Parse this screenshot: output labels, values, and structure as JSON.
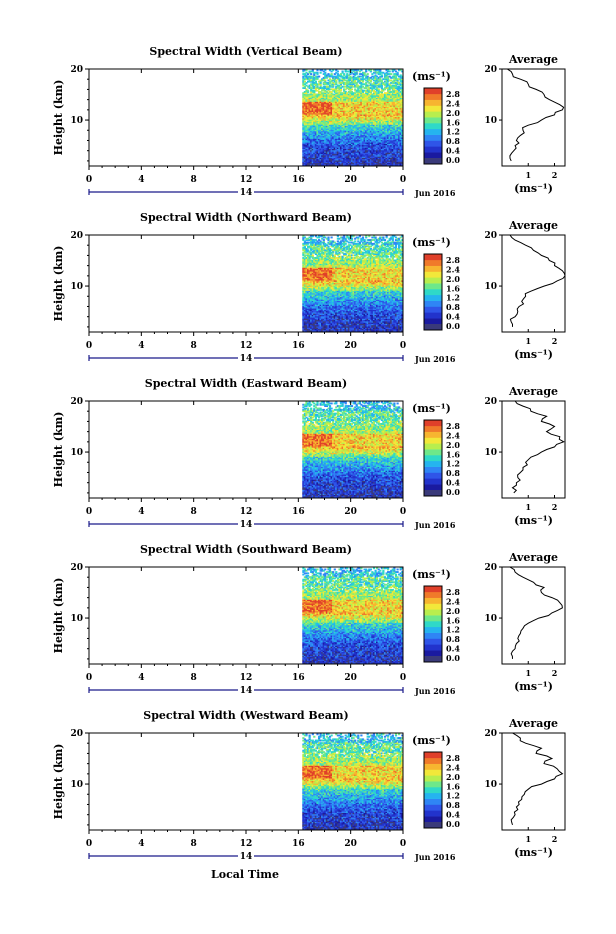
{
  "figure": {
    "xlabel": "Local Time",
    "date_label": "Jun 2016",
    "day_label": "14",
    "ylabel": "Height (km)",
    "unit_label": "(ms⁻¹)",
    "avg_title": "Average"
  },
  "colorbar": {
    "ticks": [
      "0.0",
      "0.4",
      "0.8",
      "1.2",
      "1.6",
      "2.0",
      "2.4",
      "2.8"
    ],
    "colors": [
      "#1a1aa0",
      "#2233cc",
      "#2f55e8",
      "#2f85f5",
      "#25b4ef",
      "#2fd9c8",
      "#6ee88a",
      "#b8ee4e",
      "#f2e83a",
      "#f7b530",
      "#f07a2a",
      "#e0402a"
    ],
    "bottom_color": "#3a3a7a"
  },
  "chart_data": [
    {
      "type": "heatmap",
      "title": "Spectral Width (Vertical Beam)",
      "x_ticks": [
        "0",
        "4",
        "8",
        "12",
        "16",
        "20",
        "0"
      ],
      "y_ticks": [
        "20",
        "10"
      ],
      "xlim": [
        0,
        24
      ],
      "ylim": [
        1,
        20
      ],
      "data_start_hour": 16.3,
      "average": {
        "x_ticks": [
          "1",
          "2"
        ],
        "y_ticks": [
          "20",
          "10"
        ],
        "xlim": [
          0,
          2.4
        ],
        "heights": [
          2,
          3,
          4,
          5,
          6,
          7,
          8,
          9,
          10,
          11,
          12,
          13,
          14,
          15,
          16,
          17,
          18,
          19,
          20
        ],
        "values": [
          0.35,
          0.3,
          0.45,
          0.5,
          0.55,
          0.7,
          0.8,
          1.0,
          1.5,
          2.0,
          2.3,
          2.2,
          1.8,
          1.6,
          1.3,
          1.0,
          0.7,
          0.4,
          0.2
        ]
      }
    },
    {
      "type": "heatmap",
      "title": "Spectral Width (Northward Beam)",
      "x_ticks": [
        "0",
        "4",
        "8",
        "12",
        "16",
        "20",
        "0"
      ],
      "y_ticks": [
        "20",
        "10"
      ],
      "xlim": [
        0,
        24
      ],
      "ylim": [
        1,
        20
      ],
      "data_start_hour": 16.3,
      "average": {
        "x_ticks": [
          "1",
          "2"
        ],
        "y_ticks": [
          "20",
          "10"
        ],
        "xlim": [
          0,
          2.4
        ],
        "heights": [
          2,
          3,
          4,
          5,
          6,
          7,
          8,
          9,
          10,
          11,
          12,
          13,
          14,
          15,
          16,
          17,
          18,
          19,
          20
        ],
        "values": [
          0.4,
          0.35,
          0.5,
          0.6,
          0.65,
          0.75,
          0.9,
          1.1,
          1.6,
          2.1,
          2.4,
          2.3,
          2.0,
          1.8,
          1.5,
          1.2,
          0.9,
          0.5,
          0.3
        ]
      }
    },
    {
      "type": "heatmap",
      "title": "Spectral Width (Eastward Beam)",
      "x_ticks": [
        "0",
        "4",
        "8",
        "12",
        "16",
        "20",
        "0"
      ],
      "y_ticks": [
        "20",
        "10"
      ],
      "xlim": [
        0,
        24
      ],
      "ylim": [
        1,
        20
      ],
      "data_start_hour": 16.3,
      "average": {
        "x_ticks": [
          "1",
          "2"
        ],
        "y_ticks": [
          "20",
          "10"
        ],
        "xlim": [
          0,
          2.4
        ],
        "heights": [
          2,
          3,
          4,
          5,
          6,
          7,
          8,
          9,
          10,
          11,
          12,
          13,
          14,
          15,
          16,
          17,
          18,
          19,
          20
        ],
        "values": [
          0.45,
          0.4,
          0.55,
          0.6,
          0.7,
          0.8,
          0.9,
          1.1,
          1.5,
          2.0,
          2.35,
          2.2,
          1.7,
          2.0,
          1.5,
          1.7,
          1.1,
          0.8,
          0.5
        ]
      }
    },
    {
      "type": "heatmap",
      "title": "Spectral Width (Southward Beam)",
      "x_ticks": [
        "0",
        "4",
        "8",
        "12",
        "16",
        "20",
        "0"
      ],
      "y_ticks": [
        "20",
        "10"
      ],
      "xlim": [
        0,
        24
      ],
      "ylim": [
        1,
        20
      ],
      "data_start_hour": 16.3,
      "average": {
        "x_ticks": [
          "1",
          "2"
        ],
        "y_ticks": [
          "20",
          "10"
        ],
        "xlim": [
          0,
          2.4
        ],
        "heights": [
          2,
          3,
          4,
          5,
          6,
          7,
          8,
          9,
          10,
          11,
          12,
          13,
          14,
          15,
          16,
          17,
          18,
          19,
          20
        ],
        "values": [
          0.4,
          0.35,
          0.5,
          0.55,
          0.6,
          0.7,
          0.8,
          1.0,
          1.4,
          1.9,
          2.3,
          2.2,
          1.9,
          1.5,
          1.6,
          1.2,
          0.8,
          0.5,
          0.3
        ]
      }
    },
    {
      "type": "heatmap",
      "title": "Spectral Width (Westward Beam)",
      "x_ticks": [
        "0",
        "4",
        "8",
        "12",
        "16",
        "20",
        "0"
      ],
      "y_ticks": [
        "20",
        "10"
      ],
      "xlim": [
        0,
        24
      ],
      "ylim": [
        1,
        20
      ],
      "data_start_hour": 16.3,
      "average": {
        "x_ticks": [
          "1",
          "2"
        ],
        "y_ticks": [
          "20",
          "10"
        ],
        "xlim": [
          0,
          2.4
        ],
        "heights": [
          2,
          3,
          4,
          5,
          6,
          7,
          8,
          9,
          10,
          11,
          12,
          13,
          14,
          15,
          16,
          17,
          18,
          19,
          20
        ],
        "values": [
          0.4,
          0.35,
          0.5,
          0.6,
          0.65,
          0.75,
          0.85,
          1.0,
          1.5,
          2.0,
          2.3,
          2.1,
          1.6,
          1.9,
          1.3,
          1.5,
          0.9,
          0.7,
          0.4
        ]
      }
    }
  ]
}
